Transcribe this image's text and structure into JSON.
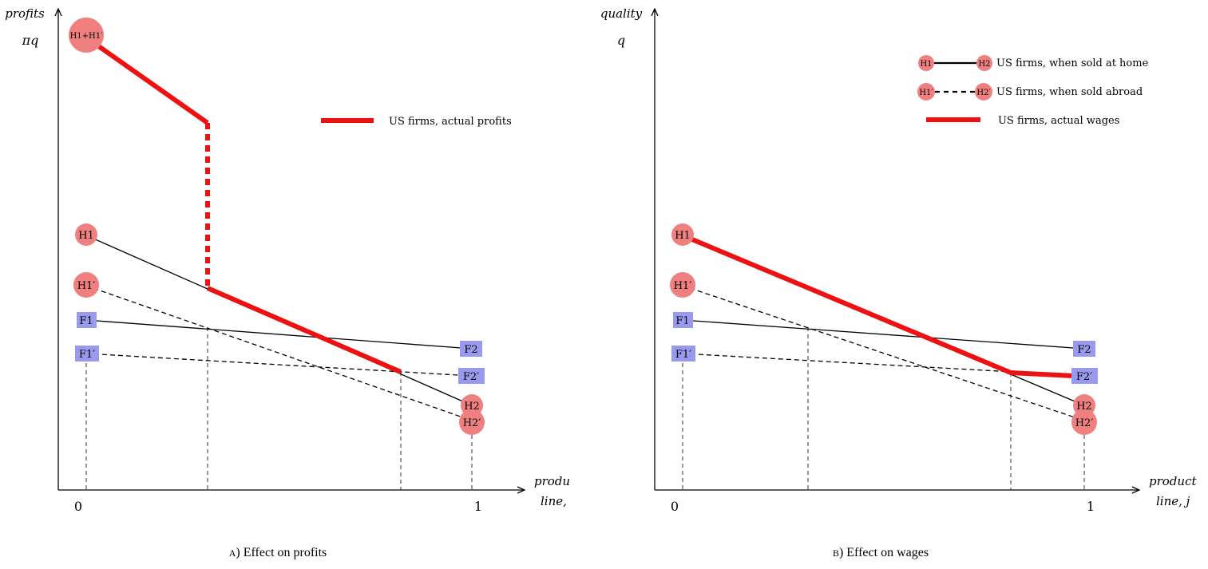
{
  "panel_a": {
    "y_axis_label_1": "profits",
    "y_axis_label_2": "πq",
    "x_axis_label_1": "produ",
    "x_axis_label_2": "line,",
    "tick_0": "0",
    "tick_1": "1",
    "caption_letter": "A",
    "caption_text": ") Effect on profits",
    "legend_actual": "US firms, actual profits",
    "node_h1h1p": "H1+H1′",
    "node_h1": "H1",
    "node_h1p": "H1′",
    "node_f1": "F1",
    "node_f1p": "F1′",
    "node_f2": "F2",
    "node_f2p": "F2′",
    "node_h2": "H2",
    "node_h2p": "H2′"
  },
  "panel_b": {
    "y_axis_label_1": "quality",
    "y_axis_label_2": "q",
    "x_axis_label_1": "product",
    "x_axis_label_2": "line,  j",
    "tick_0": "0",
    "tick_1": "1",
    "caption_letter": "B",
    "caption_text": ") Effect on wages",
    "legend_home": "US firms, when sold at home",
    "legend_abroad": "US firms, when sold abroad",
    "legend_actual": "US firms, actual wages",
    "legend_h1": "H1",
    "legend_h2": "H2",
    "legend_h1p": "H1′",
    "legend_h2p": "H2′",
    "node_h1": "H1",
    "node_h1p": "H1′",
    "node_f1": "F1",
    "node_f1p": "F1′",
    "node_f2": "F2",
    "node_f2p": "F2′",
    "node_h2": "H2",
    "node_h2p": "H2′"
  },
  "colors": {
    "accent_red": "#ee1111",
    "node_fill": "#f08080",
    "box_fill": "#9999ee"
  }
}
